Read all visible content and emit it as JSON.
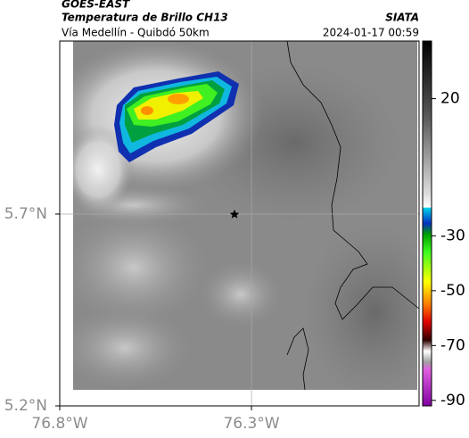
{
  "header": {
    "title": "GOES-EAST",
    "subtitle": "Temperatura de Brillo CH13",
    "source": "SIATA",
    "route": "Vía Medellín - Quibdó 50km",
    "timestamp": "2024-01-17 00:59"
  },
  "map": {
    "xlim": [
      -76.8,
      -75.863
    ],
    "ylim": [
      5.2,
      6.151
    ],
    "xticks": [
      {
        "value": -76.8,
        "label": "76.8°W"
      },
      {
        "value": -76.3,
        "label": "76.3°W"
      }
    ],
    "yticks": [
      {
        "value": 5.2,
        "label": "5.2°N"
      },
      {
        "value": 5.7,
        "label": "5.7°N"
      }
    ],
    "grid": true
  },
  "colorbar": {
    "lim": [
      -92,
      41
    ],
    "ticks": [
      20,
      -30,
      -50,
      -70,
      -90
    ]
  }
}
